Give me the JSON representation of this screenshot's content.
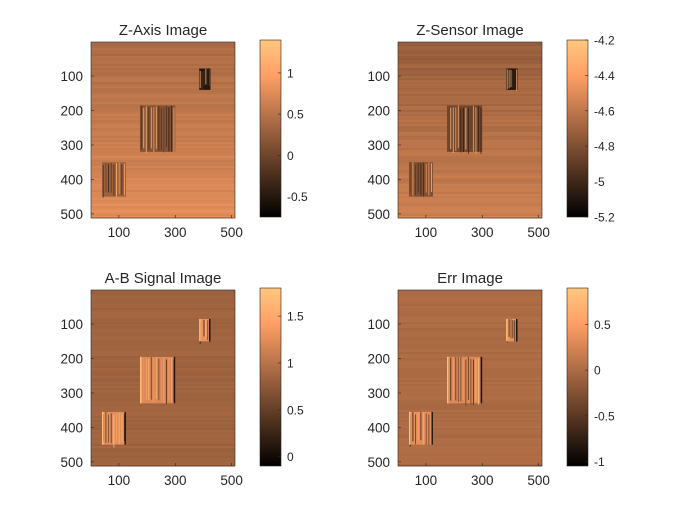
{
  "figure": {
    "colormap": "copper",
    "colormap_stops": [
      "#000000",
      "#FFC77F"
    ],
    "axis_color": "#262626"
  },
  "chart_data": [
    {
      "type": "heatmap",
      "title": "Z-Axis Image",
      "xlim": [
        1,
        512
      ],
      "ylim": [
        1,
        512
      ],
      "y_reversed": true,
      "xticks": [
        100,
        300,
        500
      ],
      "xtick_labels": [
        "100",
        "300",
        "500"
      ],
      "yticks": [
        100,
        200,
        300,
        400,
        500
      ],
      "ytick_labels": [
        "100",
        "200",
        "300",
        "400",
        "500"
      ],
      "colorbar": {
        "range": [
          -0.75,
          1.4
        ],
        "ticks": [
          -0.5,
          0,
          0.5,
          1
        ],
        "tick_labels": [
          "-0.5",
          "0",
          "0.5",
          "1"
        ]
      },
      "base_level": 0.78,
      "blocks": [
        {
          "x": [
            385,
            425
          ],
          "y": [
            78,
            140
          ],
          "level": -0.5
        },
        {
          "x": [
            175,
            300
          ],
          "y": [
            185,
            320
          ],
          "level": 0.15
        },
        {
          "x": [
            40,
            125
          ],
          "y": [
            350,
            450
          ],
          "level": 0.3
        }
      ]
    },
    {
      "type": "heatmap",
      "title": "Z-Sensor Image",
      "xlim": [
        1,
        512
      ],
      "ylim": [
        1,
        512
      ],
      "y_reversed": true,
      "xticks": [
        100,
        300,
        500
      ],
      "xtick_labels": [
        "100",
        "300",
        "500"
      ],
      "yticks": [
        100,
        200,
        300,
        400,
        500
      ],
      "ytick_labels": [
        "100",
        "200",
        "300",
        "400",
        "500"
      ],
      "colorbar": {
        "range": [
          -5.2,
          -4.2
        ],
        "ticks": [
          -5.2,
          -5,
          -4.8,
          -4.6,
          -4.4,
          -4.2
        ],
        "tick_labels": [
          "-5.2",
          "-5",
          "-4.8",
          "-4.6",
          "-4.4",
          "-4.2"
        ]
      },
      "base_level": -4.55,
      "blocks": [
        {
          "x": [
            385,
            425
          ],
          "y": [
            78,
            140
          ],
          "level": -5.1
        },
        {
          "x": [
            175,
            300
          ],
          "y": [
            185,
            320
          ],
          "level": -4.85
        },
        {
          "x": [
            40,
            125
          ],
          "y": [
            350,
            450
          ],
          "level": -4.8
        }
      ]
    },
    {
      "type": "heatmap",
      "title": "A-B Signal Image",
      "xlim": [
        1,
        512
      ],
      "ylim": [
        1,
        512
      ],
      "y_reversed": true,
      "xticks": [
        100,
        300,
        500
      ],
      "xtick_labels": [
        "100",
        "300",
        "500"
      ],
      "yticks": [
        100,
        200,
        300,
        400,
        500
      ],
      "ytick_labels": [
        "100",
        "200",
        "300",
        "400",
        "500"
      ],
      "colorbar": {
        "range": [
          -0.1,
          1.8
        ],
        "ticks": [
          0,
          0.5,
          1,
          1.5
        ],
        "tick_labels": [
          "0",
          "0.5",
          "1",
          "1.5"
        ]
      },
      "base_level": 0.85,
      "blocks": [
        {
          "x": [
            385,
            425
          ],
          "y": [
            85,
            150
          ],
          "level": 1.3
        },
        {
          "x": [
            175,
            300
          ],
          "y": [
            195,
            330
          ],
          "level": 1.2
        },
        {
          "x": [
            40,
            125
          ],
          "y": [
            355,
            450
          ],
          "level": 1.25
        }
      ]
    },
    {
      "type": "heatmap",
      "title": "Err Image",
      "xlim": [
        1,
        512
      ],
      "ylim": [
        1,
        512
      ],
      "y_reversed": true,
      "xticks": [
        100,
        300,
        500
      ],
      "xtick_labels": [
        "100",
        "300",
        "500"
      ],
      "yticks": [
        100,
        200,
        300,
        400,
        500
      ],
      "ytick_labels": [
        "100",
        "200",
        "300",
        "400",
        "500"
      ],
      "colorbar": {
        "range": [
          -1.05,
          0.9
        ],
        "ticks": [
          -1,
          -0.5,
          0,
          0.5
        ],
        "tick_labels": [
          "-1",
          "-0.5",
          "0",
          "0.5"
        ]
      },
      "base_level": 0.0,
      "blocks": [
        {
          "x": [
            385,
            425
          ],
          "y": [
            85,
            150
          ],
          "level": 0.4
        },
        {
          "x": [
            175,
            300
          ],
          "y": [
            195,
            330
          ],
          "level": 0.3
        },
        {
          "x": [
            40,
            125
          ],
          "y": [
            355,
            450
          ],
          "level": 0.35
        }
      ]
    }
  ]
}
